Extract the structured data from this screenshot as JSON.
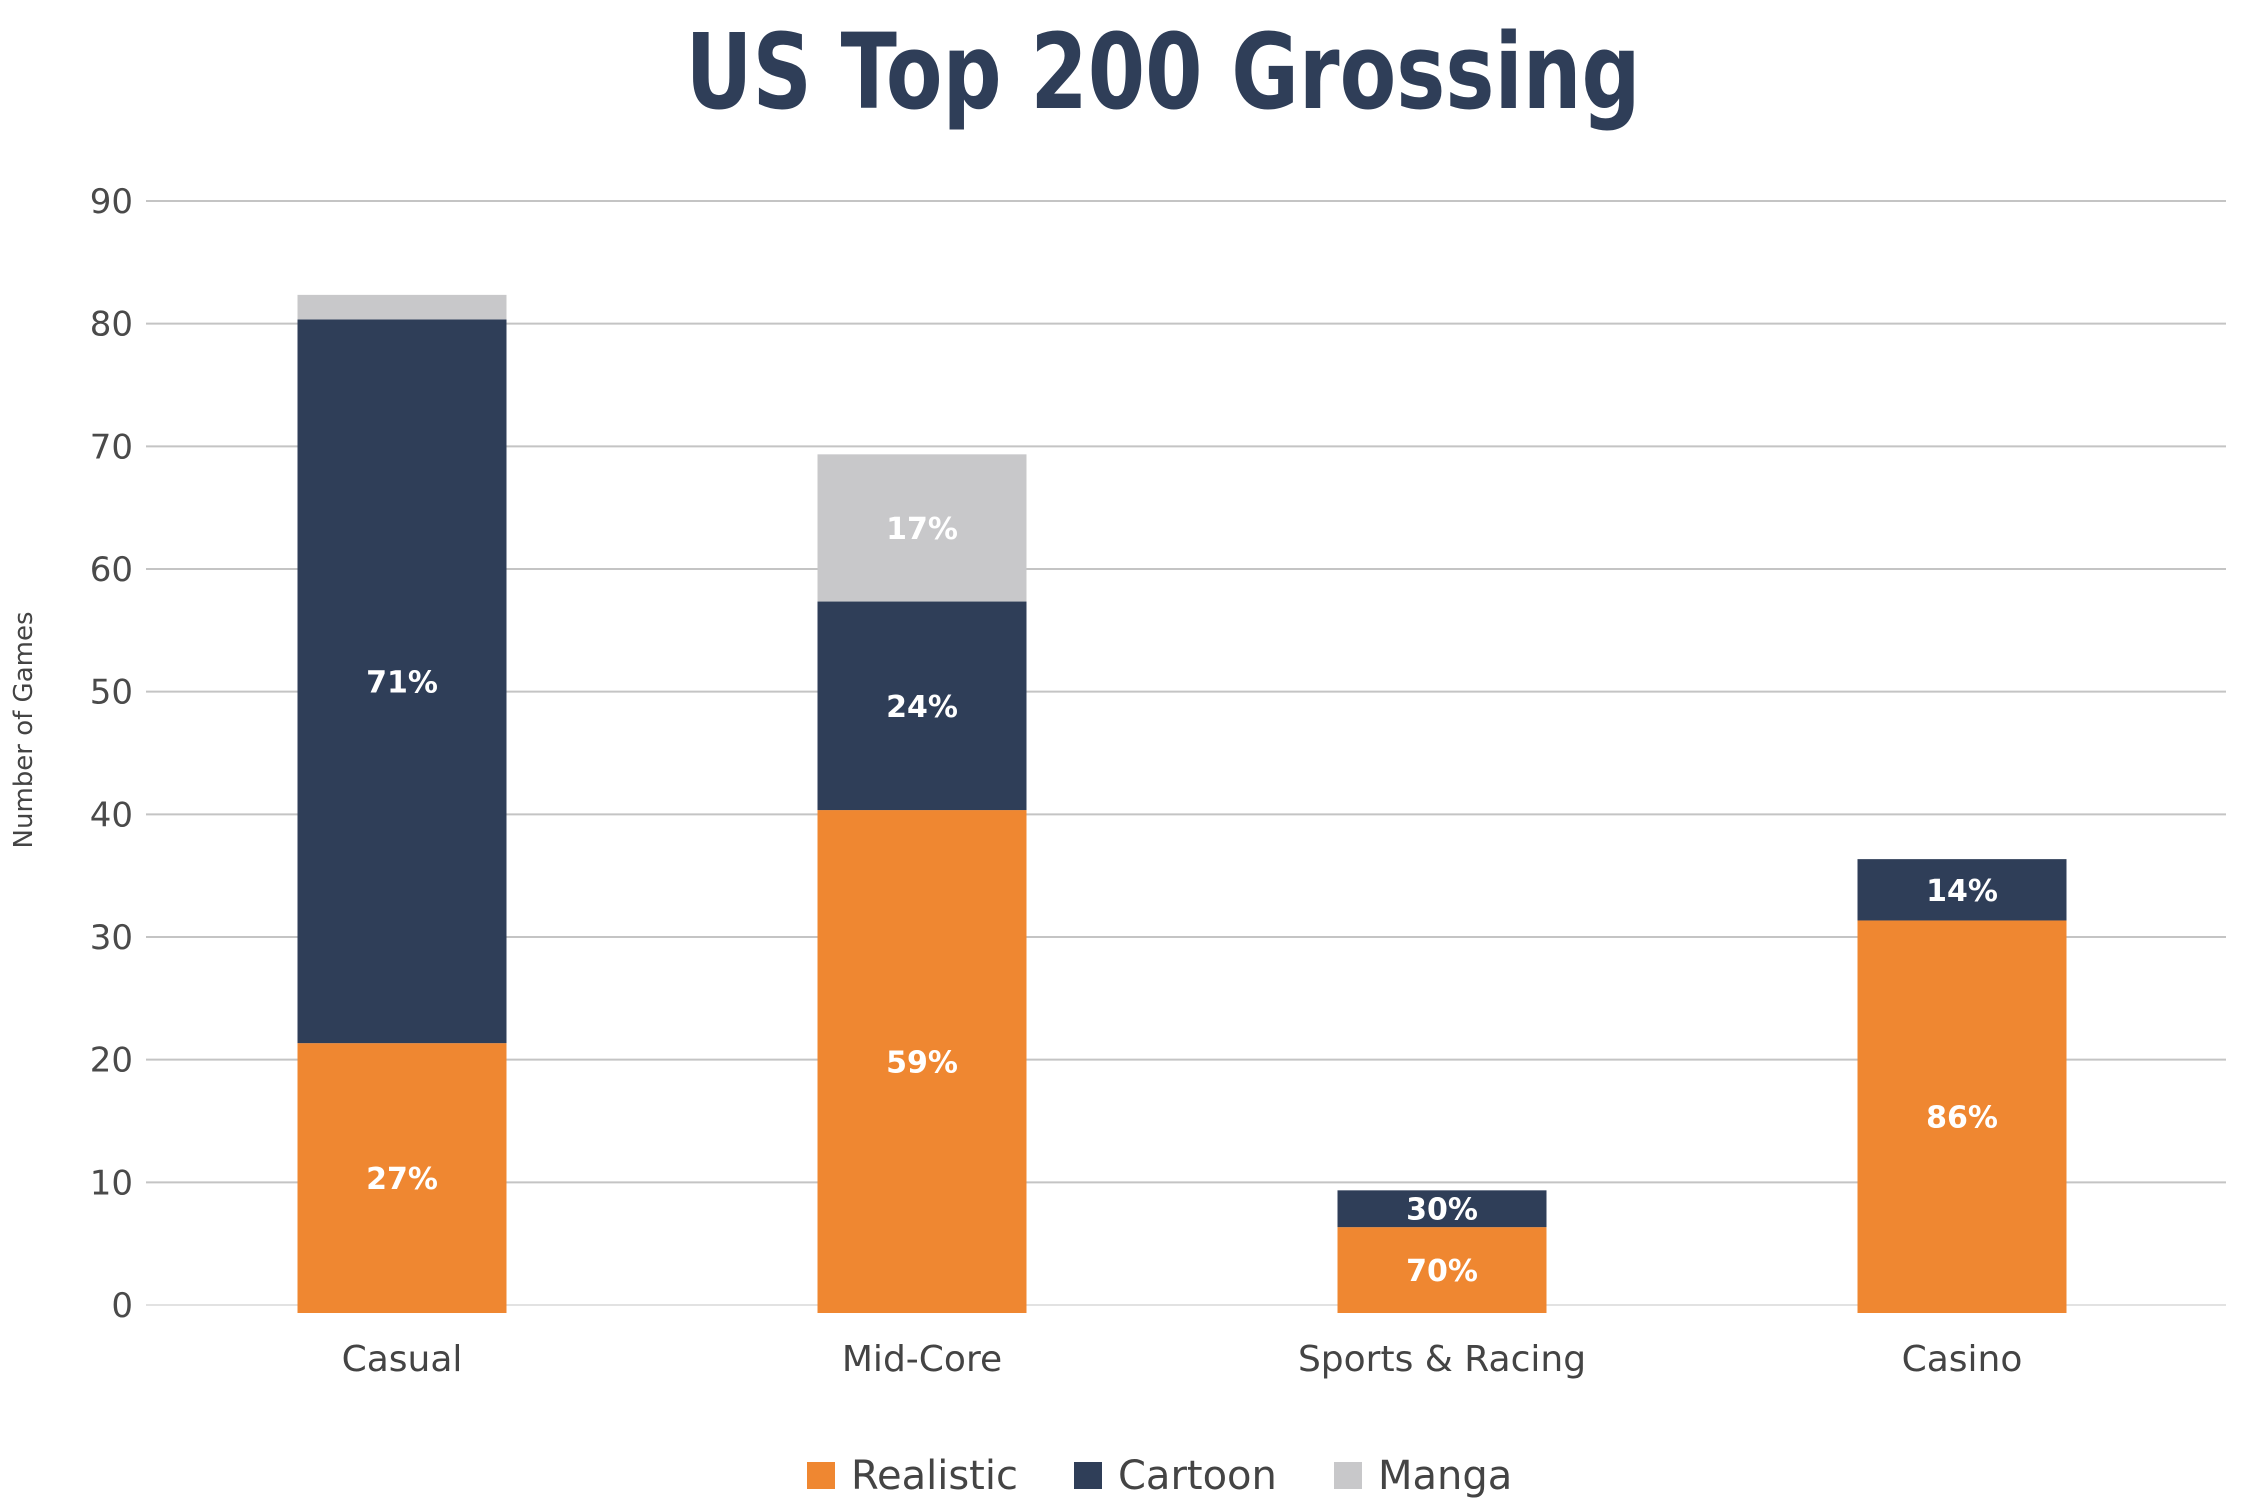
{
  "chart_data": {
    "type": "bar",
    "stacked": true,
    "title": "US Top 200 Grossing",
    "xlabel": "",
    "ylabel": "Number of Games",
    "ylim": [
      0,
      90
    ],
    "yticks": [
      0,
      10,
      20,
      30,
      40,
      50,
      60,
      70,
      80,
      90
    ],
    "grid": true,
    "legend_position": "bottom-center",
    "categories": [
      "Casual",
      "Mid-Core",
      "Sports & Racing",
      "Casino"
    ],
    "series": [
      {
        "name": "Realistic",
        "color": "#ef8731",
        "values": [
          22,
          41,
          7,
          32
        ],
        "labels": [
          "27%",
          "59%",
          "70%",
          "86%"
        ]
      },
      {
        "name": "Cartoon",
        "color": "#2f3e58",
        "values": [
          59,
          17,
          3,
          5
        ],
        "labels": [
          "71%",
          "24%",
          "30%",
          "14%"
        ]
      },
      {
        "name": "Manga",
        "color": "#c8c8ca",
        "values": [
          2,
          12,
          0,
          0
        ],
        "labels": [
          "",
          "17%",
          "",
          ""
        ]
      }
    ]
  }
}
